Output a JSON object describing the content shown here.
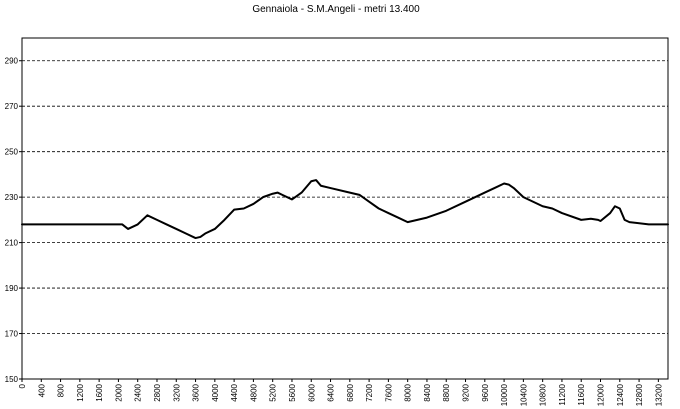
{
  "chart_data": {
    "type": "line",
    "title": "Gennaiola - S.M.Angeli - metri 13.400",
    "xlabel": "",
    "ylabel": "",
    "xlim": [
      0,
      13400
    ],
    "ylim": [
      150,
      300
    ],
    "x_ticks": [
      "0",
      "400",
      "800",
      "1200",
      "1600",
      "2000",
      "2400",
      "2800",
      "3200",
      "3600",
      "4000",
      "4400",
      "4800",
      "5200",
      "5600",
      "6000",
      "6400",
      "6800",
      "7200",
      "7600",
      "8000",
      "8400",
      "8800",
      "9200",
      "9600",
      "10000",
      "10400",
      "10800",
      "11200",
      "11600",
      "12000",
      "12400",
      "12800",
      "13200"
    ],
    "y_ticks": [
      "150",
      "170",
      "190",
      "210",
      "230",
      "250",
      "270",
      "290"
    ],
    "grid": true,
    "legend": "none",
    "series": [
      {
        "color": "#000000",
        "x": [
          0,
          500,
          1000,
          1500,
          2000,
          2080,
          2200,
          2400,
          2600,
          2800,
          3000,
          3200,
          3400,
          3600,
          3700,
          3800,
          4000,
          4200,
          4400,
          4600,
          4800,
          5000,
          5200,
          5300,
          5400,
          5600,
          5800,
          6000,
          6100,
          6200,
          6400,
          6800,
          7000,
          7200,
          7400,
          7600,
          7800,
          8000,
          8200,
          8400,
          8800,
          9200,
          9600,
          9800,
          10000,
          10100,
          10200,
          10400,
          10800,
          11000,
          11200,
          11600,
          11800,
          11950,
          12000,
          12200,
          12300,
          12400,
          12500,
          12600,
          13000,
          13400
        ],
        "y": [
          218,
          218,
          218,
          218,
          218,
          218,
          216,
          218,
          222,
          220,
          218,
          216,
          214,
          212,
          212.5,
          214,
          216,
          220,
          224.5,
          225,
          227,
          230,
          231.5,
          232,
          231,
          229,
          232,
          237,
          237.5,
          235,
          234,
          232,
          231,
          228,
          225,
          223,
          221,
          219,
          220,
          221,
          224,
          228,
          232,
          234,
          236,
          235.5,
          234,
          230,
          226,
          225,
          223,
          220,
          220.5,
          220,
          219.5,
          223,
          226,
          225,
          220,
          219,
          218,
          218
        ]
      }
    ]
  }
}
